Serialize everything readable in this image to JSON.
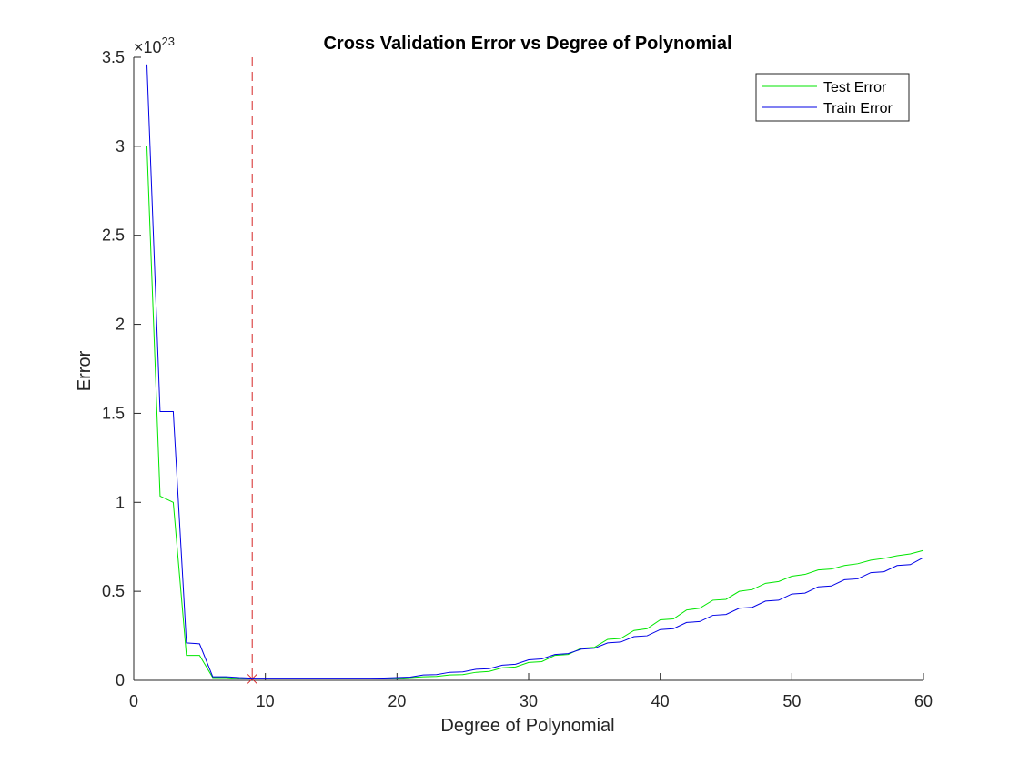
{
  "chart_data": {
    "type": "line",
    "title": "Cross Validation Error vs Degree of Polynomial",
    "xlabel": "Degree of Polynomial",
    "ylabel": "Error",
    "y_exponent_label": "×10",
    "y_exponent": "23",
    "xlim": [
      0,
      60
    ],
    "ylim": [
      0,
      3.5
    ],
    "xticks": [
      0,
      10,
      20,
      30,
      40,
      50,
      60
    ],
    "xtick_labels": [
      "0",
      "10",
      "20",
      "30",
      "40",
      "50",
      "60"
    ],
    "yticks": [
      0,
      0.5,
      1,
      1.5,
      2,
      2.5,
      3,
      3.5
    ],
    "ytick_labels": [
      "0",
      "0.5",
      "1",
      "1.5",
      "2",
      "2.5",
      "3",
      "3.5"
    ],
    "grid": false,
    "legend_position": "top-right",
    "best_degree_marker": {
      "x": 9,
      "y": 0.008,
      "color": "#d62728",
      "style": "dashed"
    },
    "series": [
      {
        "name": "Test Error",
        "color": "#00e600",
        "x": [
          1,
          2,
          3,
          4,
          5,
          6,
          7,
          8,
          9,
          10,
          11,
          12,
          13,
          14,
          15,
          16,
          17,
          18,
          19,
          20,
          21,
          22,
          23,
          24,
          25,
          26,
          27,
          28,
          29,
          30,
          31,
          32,
          33,
          34,
          35,
          36,
          37,
          38,
          39,
          40,
          41,
          42,
          43,
          44,
          45,
          46,
          47,
          48,
          49,
          50,
          51,
          52,
          53,
          54,
          55,
          56,
          57,
          58,
          59,
          60
        ],
        "values": [
          3.0,
          1.035,
          1.0,
          0.14,
          0.14,
          0.015,
          0.015,
          0.01,
          0.008,
          0.008,
          0.008,
          0.008,
          0.008,
          0.008,
          0.008,
          0.008,
          0.008,
          0.008,
          0.009,
          0.01,
          0.015,
          0.02,
          0.022,
          0.03,
          0.032,
          0.045,
          0.05,
          0.07,
          0.075,
          0.1,
          0.105,
          0.14,
          0.145,
          0.18,
          0.185,
          0.23,
          0.235,
          0.28,
          0.29,
          0.34,
          0.345,
          0.395,
          0.405,
          0.45,
          0.455,
          0.5,
          0.51,
          0.545,
          0.555,
          0.585,
          0.595,
          0.62,
          0.625,
          0.645,
          0.655,
          0.675,
          0.685,
          0.7,
          0.71,
          0.73
        ]
      },
      {
        "name": "Train Error",
        "color": "#0000e6",
        "x": [
          1,
          2,
          3,
          4,
          5,
          6,
          7,
          8,
          9,
          10,
          11,
          12,
          13,
          14,
          15,
          16,
          17,
          18,
          19,
          20,
          21,
          22,
          23,
          24,
          25,
          26,
          27,
          28,
          29,
          30,
          31,
          32,
          33,
          34,
          35,
          36,
          37,
          38,
          39,
          40,
          41,
          42,
          43,
          44,
          45,
          46,
          47,
          48,
          49,
          50,
          51,
          52,
          53,
          54,
          55,
          56,
          57,
          58,
          59,
          60
        ],
        "values": [
          3.46,
          1.51,
          1.51,
          0.21,
          0.205,
          0.02,
          0.02,
          0.015,
          0.012,
          0.012,
          0.012,
          0.012,
          0.012,
          0.012,
          0.012,
          0.012,
          0.012,
          0.012,
          0.013,
          0.015,
          0.018,
          0.03,
          0.032,
          0.045,
          0.047,
          0.062,
          0.065,
          0.085,
          0.09,
          0.115,
          0.12,
          0.145,
          0.15,
          0.175,
          0.18,
          0.21,
          0.215,
          0.245,
          0.25,
          0.285,
          0.29,
          0.325,
          0.33,
          0.365,
          0.37,
          0.405,
          0.41,
          0.445,
          0.45,
          0.485,
          0.49,
          0.525,
          0.53,
          0.565,
          0.57,
          0.605,
          0.61,
          0.645,
          0.65,
          0.69
        ]
      }
    ]
  }
}
